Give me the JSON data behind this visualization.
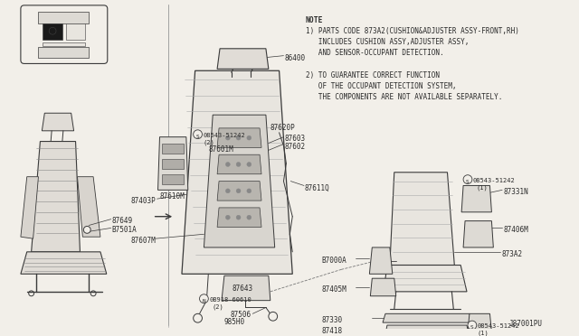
{
  "background_color": "#f2efe9",
  "line_color": "#3a3a3a",
  "text_color": "#2a2a2a",
  "fig_width": 6.4,
  "fig_height": 3.72,
  "dpi": 100,
  "note_text": [
    "NOTE",
    "1) PARTS CODE 873A2(CUSHION&ADJUSTER ASSY-FRONT,RH)",
    "   INCLUDES CUSHION ASSY,ADJUSTER ASSY,",
    "   AND SENSOR-OCCUPANT DETECTION.",
    "",
    "2) TO GUARANTEE CORRECT FUNCTION",
    "   OF THE OCCUPANT DETECTION SYSTEM,",
    "   THE COMPONENTS ARE NOT AVAILABLE SEPARATELY."
  ]
}
